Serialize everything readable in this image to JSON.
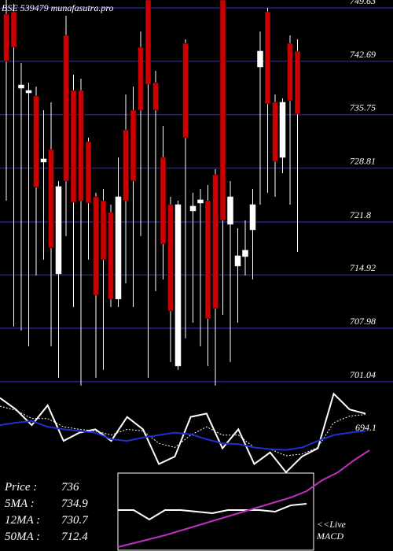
{
  "chart_data": [
    {
      "type": "candlestick",
      "title": "BSE 539479 munafasutra.pro",
      "ylim": [
        700,
        750.65
      ],
      "yticks": [
        749.63,
        742.69,
        735.75,
        728.81,
        721.8,
        714.92,
        707.98,
        701.04
      ],
      "grid": true,
      "up_color": "#ffffff",
      "down_color": "#cc0000",
      "grid_color": "#22228a",
      "open": [
        748.81,
        749.12,
        739.19,
        738.58,
        738.17,
        729.58,
        731.21,
        715.05,
        746.05,
        738.89,
        738.89,
        732.24,
        725.07,
        724.56,
        723.03,
        711.78,
        733.77,
        736.33,
        744.51,
        750.65,
        739.91,
        730.19,
        724.05,
        703.08,
        745.02,
        723.23,
        724.26,
        724.56,
        727.94,
        750.65,
        721.49,
        716.07,
        717.3,
        720.78,
        741.95,
        749.12,
        737.35,
        730.19,
        745.02,
        744.0
      ],
      "high": [
        750.65,
        750.14,
        742.47,
        739.91,
        739.4,
        736.33,
        737.35,
        727.12,
        748.6,
        740.93,
        740.42,
        732.75,
        725.59,
        726.1,
        724.05,
        730.19,
        738.37,
        739.4,
        746.56,
        750.65,
        741.44,
        734.28,
        725.07,
        724.56,
        745.53,
        725.59,
        726.1,
        726.61,
        728.66,
        750.65,
        727.12,
        720.98,
        722.01,
        726.1,
        746.56,
        749.63,
        738.37,
        737.86,
        746.05,
        745.53
      ],
      "low": [
        724.56,
        708.2,
        707.68,
        705.64,
        714.84,
        716.89,
        705.64,
        701.55,
        719.96,
        710.75,
        700.52,
        716.89,
        701.55,
        702.57,
        710.75,
        710.75,
        713.82,
        710.75,
        719.96,
        701.55,
        712.8,
        714.33,
        703.59,
        702.57,
        706.66,
        708.71,
        705.64,
        703.08,
        700.52,
        709.73,
        703.59,
        708.71,
        714.84,
        714.33,
        724.05,
        725.59,
        725.07,
        728.14,
        724.05,
        717.91
      ],
      "close": [
        742.67,
        744.51,
        739.6,
        738.89,
        726.3,
        729.99,
        718.43,
        726.4,
        727.12,
        724.36,
        724.56,
        724.26,
        712.29,
        716.89,
        711.78,
        725.07,
        724.56,
        727.12,
        736.33,
        739.7,
        736.33,
        718.94,
        710.24,
        724.05,
        732.75,
        723.85,
        724.67,
        709.22,
        710.55,
        722.01,
        725.07,
        717.4,
        718.12,
        724.05,
        744.0,
        737.15,
        729.68,
        737.35,
        737.56,
        735.82
      ]
    },
    {
      "type": "line",
      "ylim": [
        0,
        100
      ],
      "label": "694.1",
      "series": [
        {
          "color": "#ffffff",
          "style": "solid",
          "values": [
            90,
            76,
            57,
            81,
            38,
            48,
            52,
            38,
            67,
            52,
            10,
            19,
            67,
            71,
            29,
            52,
            10,
            24,
            0,
            19,
            29,
            95,
            76,
            71
          ]
        },
        {
          "color": "#ffffff",
          "style": "dotted",
          "values": [
            80,
            75,
            65,
            65,
            55,
            52,
            50,
            45,
            52,
            50,
            35,
            30,
            45,
            55,
            45,
            45,
            30,
            28,
            20,
            22,
            30,
            60,
            68,
            70
          ]
        },
        {
          "color": "#1f2fd0",
          "style": "solid",
          "values": [
            57,
            60,
            62,
            55,
            52,
            50,
            48,
            40,
            38,
            42,
            45,
            48,
            46,
            40,
            35,
            34,
            30,
            28,
            27,
            30,
            38,
            45,
            48,
            50
          ]
        }
      ]
    },
    {
      "type": "macd",
      "ylim": [
        0,
        130
      ],
      "label_1": "<<Live",
      "label_2": "MACD",
      "series": [
        {
          "color": "#ffffff",
          "values": [
            52,
            52,
            40,
            52,
            52,
            50,
            48,
            52,
            52,
            52,
            50,
            58,
            60,
            null,
            null,
            null,
            null
          ]
        },
        {
          "color": "#c030c0",
          "values": [
            5,
            10,
            15,
            20,
            26,
            32,
            38,
            44,
            50,
            56,
            62,
            68,
            76,
            90,
            100,
            115,
            128
          ]
        }
      ]
    },
    {
      "type": "info",
      "rows": [
        {
          "label": "Price :",
          "value": 736
        },
        {
          "label": "5MA :",
          "value": 734.9
        },
        {
          "label": "12MA :",
          "value": 730.7
        },
        {
          "label": "50MA :",
          "value": 712.4
        }
      ]
    }
  ]
}
